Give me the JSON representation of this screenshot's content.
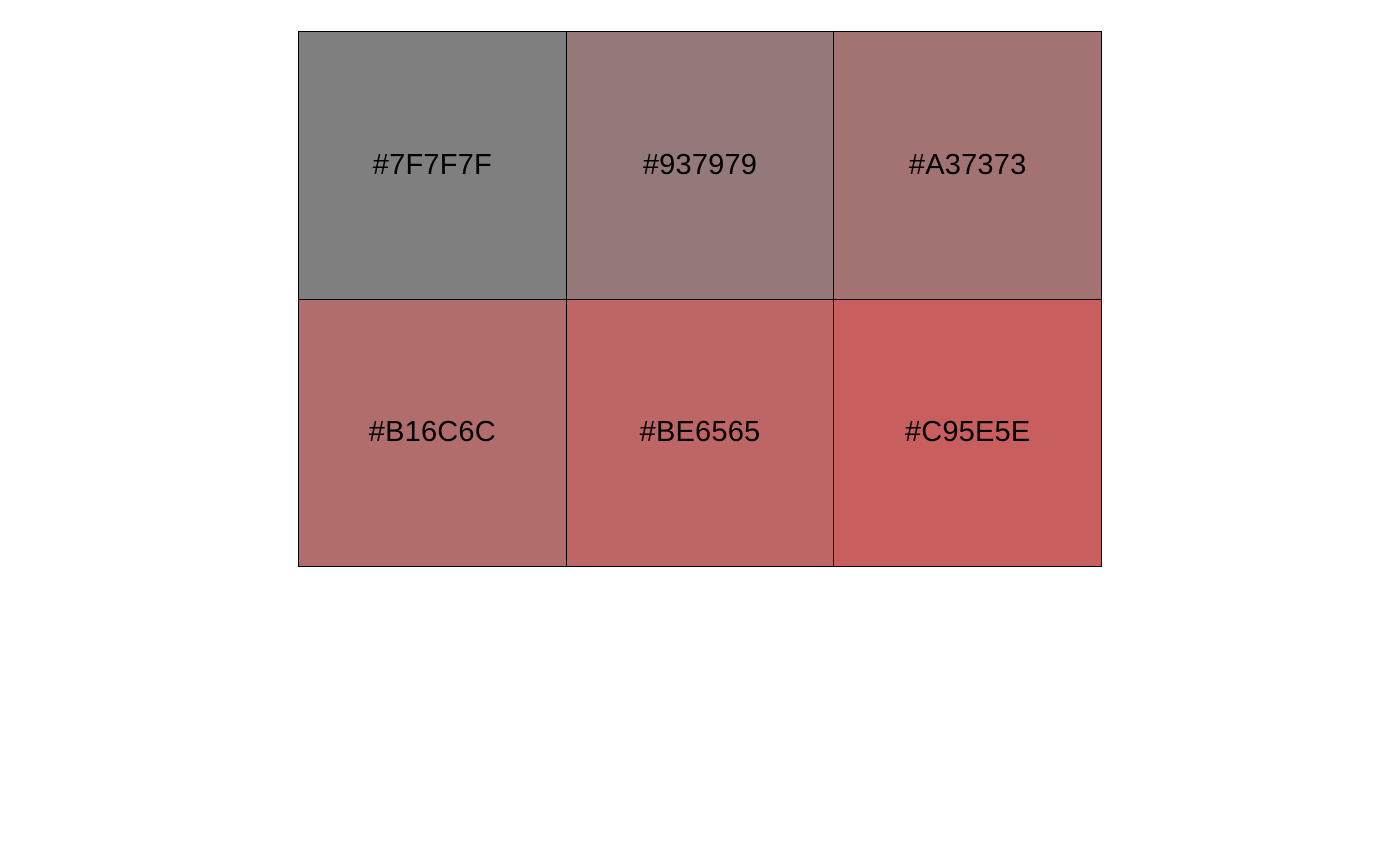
{
  "palette": {
    "columns": 3,
    "swatches": [
      {
        "label": "#7F7F7F",
        "color": "#7F7F7F"
      },
      {
        "label": "#937979",
        "color": "#937979"
      },
      {
        "label": "#A37373",
        "color": "#A37373"
      },
      {
        "label": "#B16C6C",
        "color": "#B16C6C"
      },
      {
        "label": "#BE6565",
        "color": "#BE6565"
      },
      {
        "label": "#C95E5E",
        "color": "#C95E5E"
      }
    ]
  }
}
